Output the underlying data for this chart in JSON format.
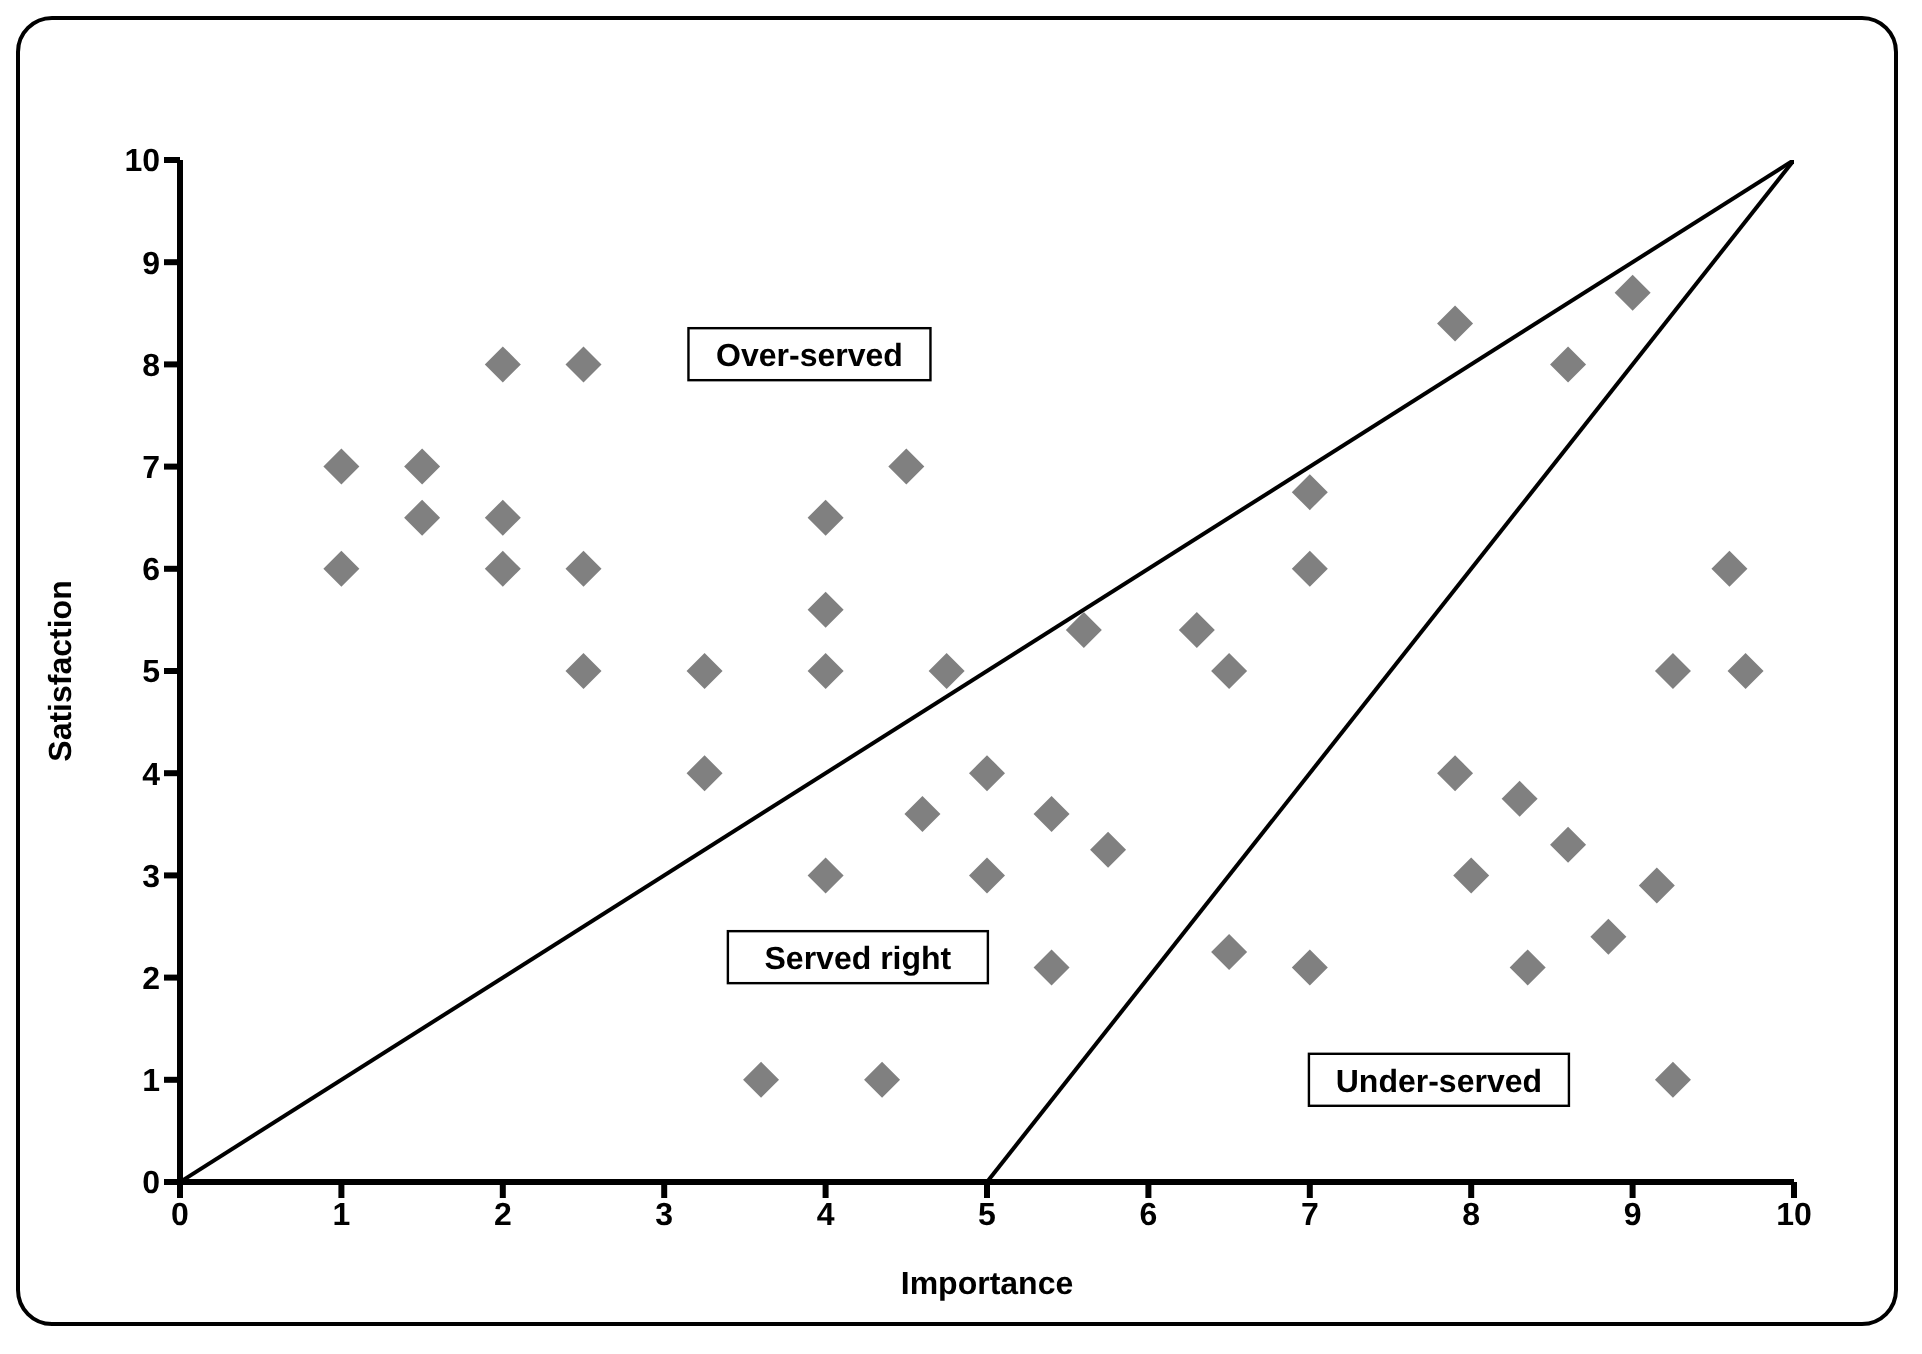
{
  "chart_data": {
    "type": "scatter",
    "xlabel": "Importance",
    "ylabel": "Satisfaction",
    "xlim": [
      0,
      10
    ],
    "xticks": [
      0,
      1,
      2,
      3,
      4,
      5,
      6,
      7,
      8,
      9,
      10
    ],
    "ylim": [
      0,
      10
    ],
    "yticks": [
      0,
      1,
      2,
      3,
      4,
      5,
      6,
      7,
      8,
      9,
      10
    ],
    "grid": false,
    "legend": false,
    "series": [
      {
        "marker": "diamond",
        "color": "#808080",
        "x": [
          1,
          1,
          1.5,
          1.5,
          2,
          2,
          2,
          2.5,
          2.5,
          2.5,
          3.25,
          3.25,
          3.6,
          4,
          4,
          4,
          4,
          4.35,
          4.5,
          4.75,
          4.6,
          5,
          5,
          5.4,
          5.4,
          5.6,
          5.75,
          6.3,
          6.5,
          6.5,
          7,
          7,
          7,
          7.9,
          8,
          7.9,
          8.3,
          8.35,
          8.6,
          8.6,
          8.85,
          9,
          9.15,
          9.25,
          9.25,
          9.6,
          9.7
        ],
        "values": [
          7,
          6,
          7,
          6.5,
          8,
          6.5,
          6,
          8,
          6,
          5,
          5,
          4,
          1,
          6.5,
          5.6,
          5,
          3,
          1,
          7,
          5,
          3.6,
          4,
          3,
          3.6,
          2.1,
          5.4,
          3.25,
          5.4,
          5,
          2.25,
          6.75,
          6,
          2.1,
          4,
          3,
          8.4,
          3.75,
          2.1,
          3.3,
          8,
          2.4,
          8.7,
          2.9,
          5,
          1,
          6,
          5
        ]
      },
      {
        "type": "line",
        "marker": "none",
        "color": "#000000",
        "x": [
          0,
          10
        ],
        "values": [
          0,
          10
        ]
      },
      {
        "type": "line",
        "marker": "none",
        "color": "#000000",
        "x": [
          5,
          10
        ],
        "values": [
          0,
          10
        ]
      }
    ],
    "annotations": [
      "Over-served",
      "Served right",
      "Under-served"
    ]
  }
}
